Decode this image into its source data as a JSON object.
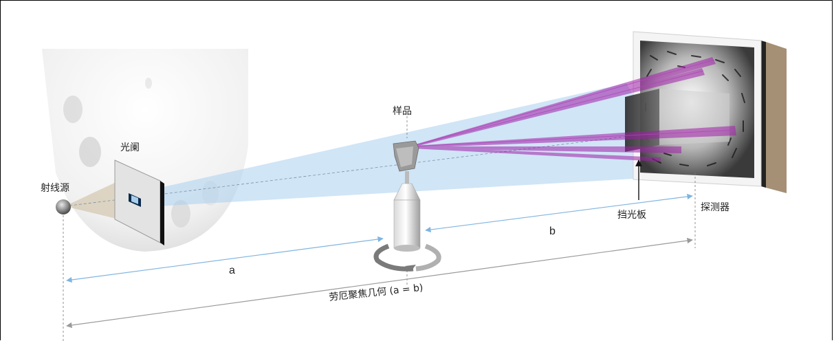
{
  "labels": {
    "source": "射线源",
    "aperture": "光阑",
    "sample": "样品",
    "beamstop": "挡光板",
    "detector": "探测器",
    "dist_a": "a",
    "dist_b": "b",
    "geometry": "劳厄聚焦几何 (a = b)"
  },
  "colors": {
    "beam": "#a9cfee",
    "diffracted": "#a020a8",
    "dimension_line": "#7fb4e0",
    "dimension_line_gray": "#9a9a9a"
  }
}
